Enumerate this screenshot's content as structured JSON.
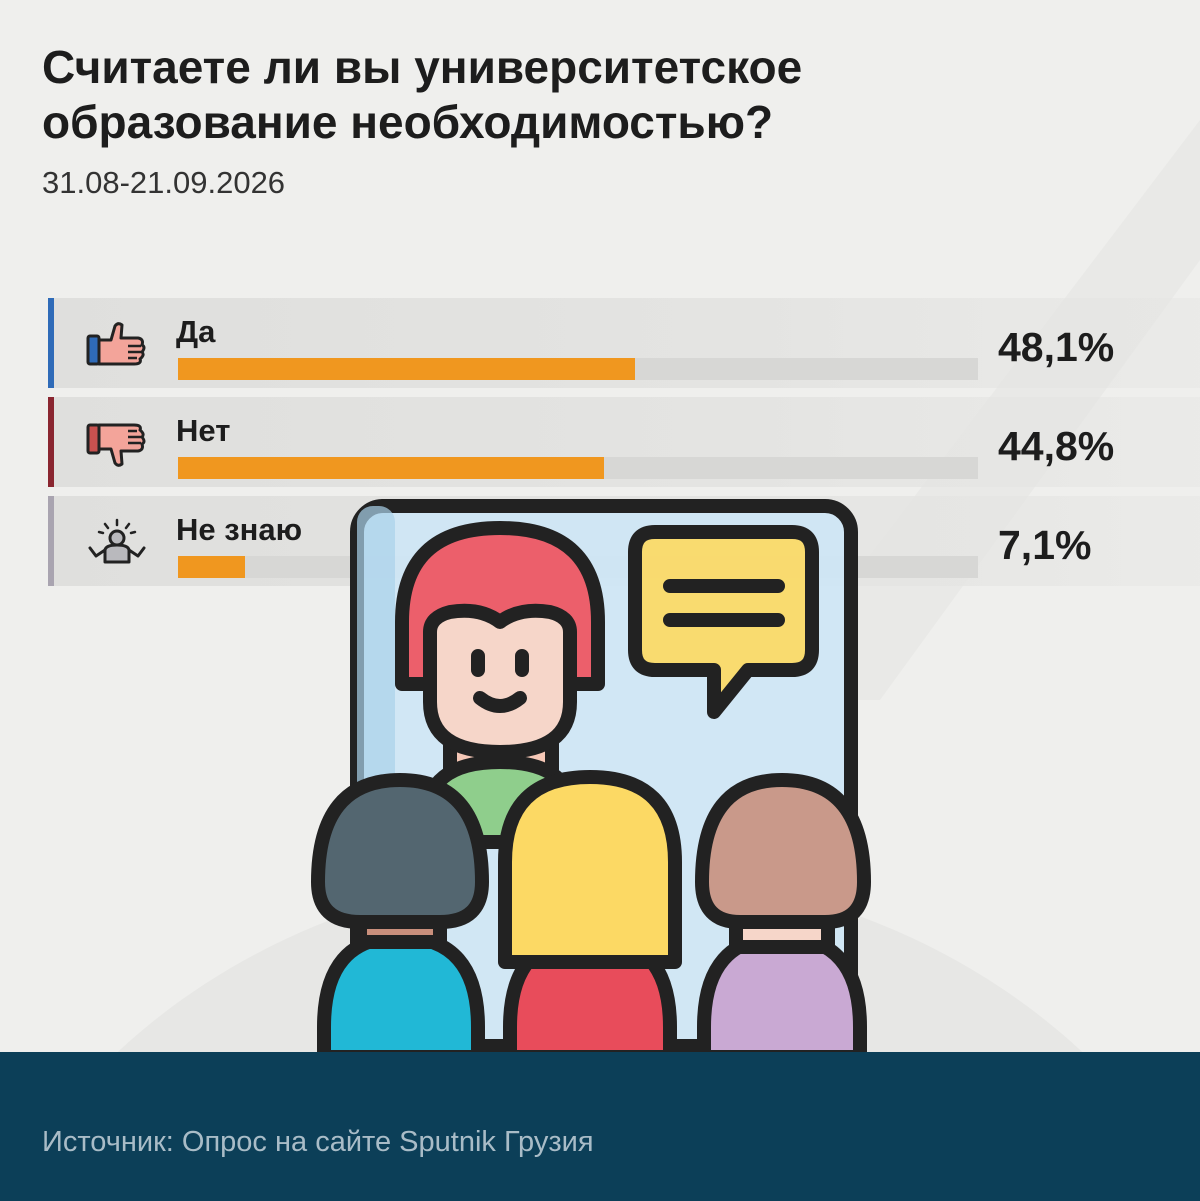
{
  "header": {
    "title_line1": "Считаете ли вы университетское",
    "title_line2": "образование необходимостью?",
    "date_range": "31.08-21.09.2026"
  },
  "chart_data": {
    "type": "bar",
    "orientation": "horizontal",
    "categories": [
      "Да",
      "Нет",
      "Не знаю"
    ],
    "values": [
      48.1,
      44.8,
      7.1
    ],
    "value_labels": [
      "48,1%",
      "44,8%",
      "7,1%"
    ],
    "icons": [
      "thumbs-up-icon",
      "thumbs-down-icon",
      "shrug-icon"
    ],
    "accent_colors": [
      "#2f6bb8",
      "#8a2630",
      "#a9a4b0"
    ],
    "bar_color": "#f0971f",
    "xlim": [
      0,
      100
    ]
  },
  "footer": {
    "source": "Источник: Опрос на сайте Sputnik Грузия"
  }
}
